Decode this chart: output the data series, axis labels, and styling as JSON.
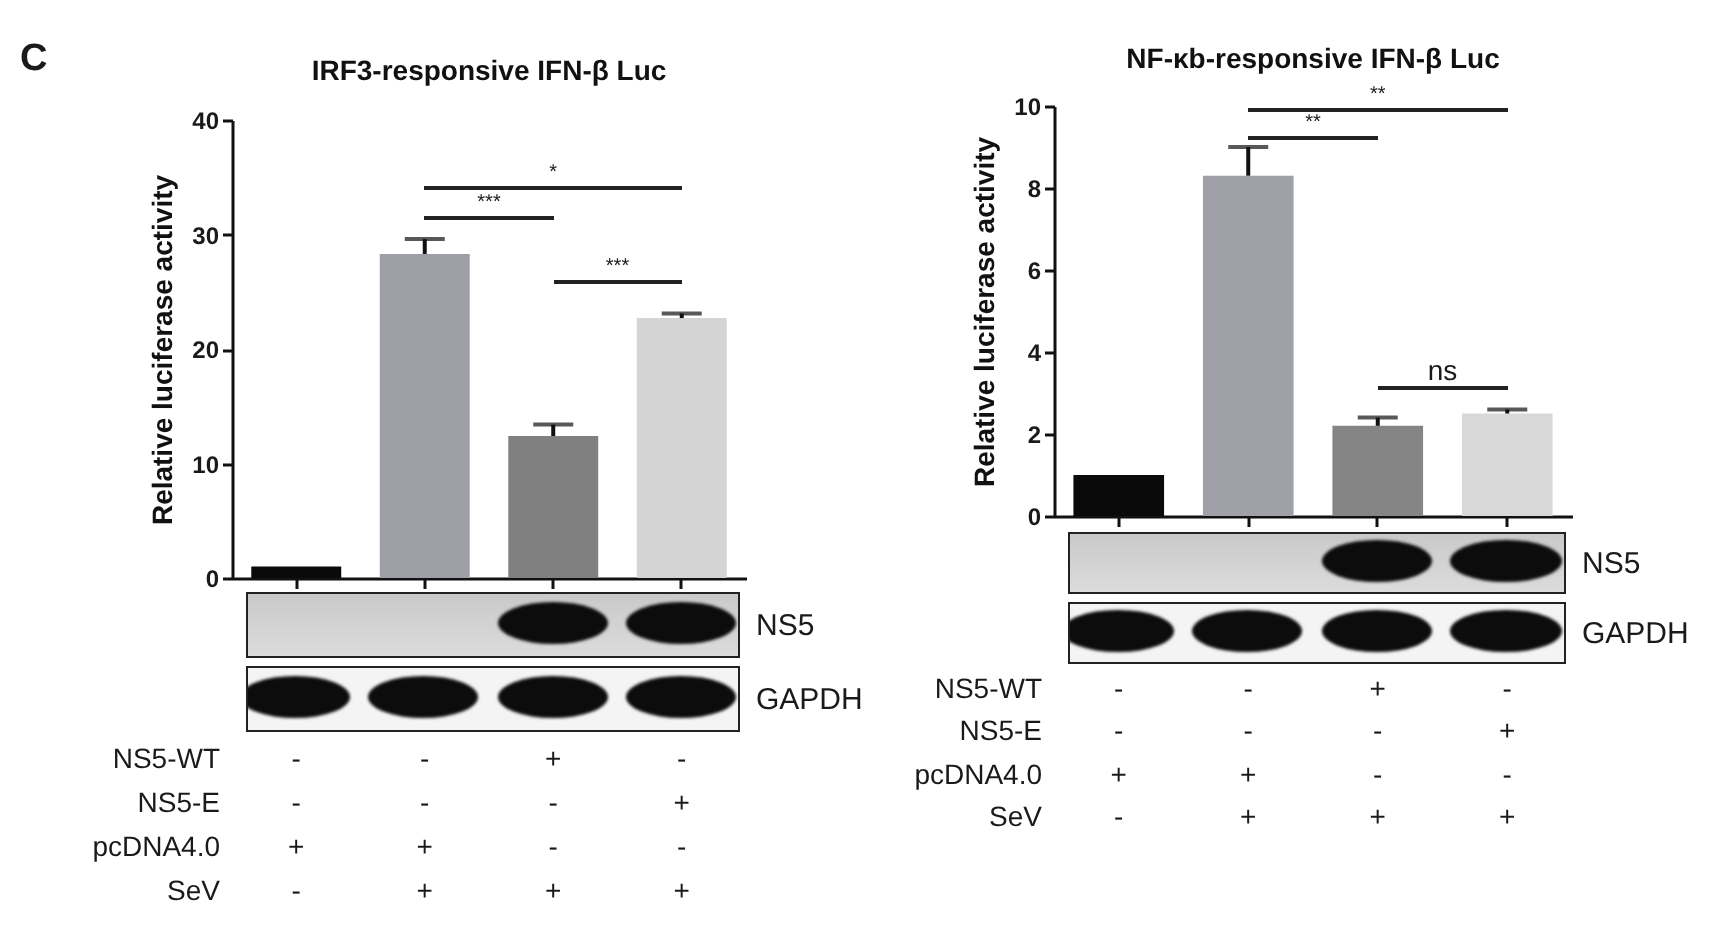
{
  "chart_data": [
    {
      "type": "bar",
      "title": "IRF3-responsive IFN-β Luc",
      "ylabel": "Relative luciferase activity",
      "categories": [
        null,
        null,
        null,
        null
      ],
      "values": [
        1.0,
        28.3,
        12.4,
        22.7
      ],
      "errors": [
        null,
        [
          28.3,
          29.6
        ],
        [
          12.4,
          13.4
        ],
        [
          22.7,
          23.1
        ]
      ],
      "colors": [
        "#0a0a0a",
        "#9e9ea6",
        "#808080",
        "#d4d4d4"
      ],
      "ylim": [
        0,
        40
      ],
      "yticks": [
        0,
        10,
        20,
        30,
        40
      ],
      "tick_labels": "y",
      "annotations": [
        "C",
        "*",
        "***",
        "***",
        "NS5",
        "GAPDH",
        "NS5-WT",
        "-",
        "-",
        "+",
        "-",
        "NS5-E",
        "-",
        "-",
        "-",
        "+",
        "pcDNA4.0",
        "+",
        "+",
        "-",
        "-",
        "SeV",
        "-",
        "+",
        "+",
        "+"
      ]
    },
    {
      "type": "bar",
      "title": "NF-κb-responsive IFN-β Luc",
      "ylabel": "Relative luciferase activity",
      "categories": [
        null,
        null,
        null,
        null
      ],
      "values": [
        1.0,
        8.3,
        2.2,
        2.5
      ],
      "errors": [
        null,
        [
          8.3,
          9.0
        ],
        [
          2.2,
          2.4
        ],
        [
          2.5,
          2.6
        ]
      ],
      "colors": [
        "#0a0a0a",
        "#a0a0a8",
        "#858585",
        "#d8d8d8"
      ],
      "ylim": [
        0,
        10
      ],
      "yticks": [
        0,
        2,
        4,
        6,
        8,
        10
      ],
      "tick_labels": "y",
      "annotations": [
        "**",
        "**",
        "ns",
        "NS5",
        "GAPDH",
        "NS5-WT",
        "-",
        "-",
        "+",
        "-",
        "NS5-E",
        "-",
        "-",
        "-",
        "+",
        "pcDNA4.0",
        "+",
        "+",
        "-",
        "-",
        "SeV",
        "-",
        "+",
        "+",
        "+"
      ]
    }
  ]
}
